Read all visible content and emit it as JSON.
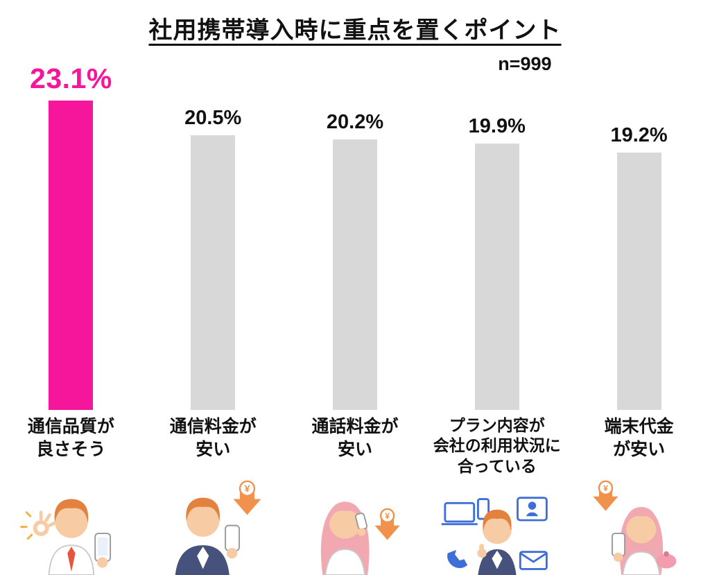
{
  "chart_data": {
    "type": "bar",
    "title": "社用携帯導入時に重点を置くポイント",
    "sample_label": "n=999",
    "unit": "%",
    "ylim": [
      0,
      25
    ],
    "grid": false,
    "legend": false,
    "categories": [
      "通信品質が良さそう",
      "通信料金が安い",
      "通話料金が安い",
      "プラン内容が会社の利用状況に合っている",
      "端末代金が安い"
    ],
    "values": [
      23.1,
      20.5,
      20.2,
      19.9,
      19.2
    ],
    "bars": [
      {
        "value": 23.1,
        "value_label": "23.1%",
        "category": "通信品質が\n良さそう",
        "highlighted": true,
        "illustration": "man-ok-sign-with-phone"
      },
      {
        "value": 20.5,
        "value_label": "20.5%",
        "category": "通信料金が\n安い",
        "highlighted": false,
        "illustration": "man-phone-yen-down-arrow"
      },
      {
        "value": 20.2,
        "value_label": "20.2%",
        "category": "通話料金が\n安い",
        "highlighted": false,
        "illustration": "woman-calling-yen-down-arrow"
      },
      {
        "value": 19.9,
        "value_label": "19.9%",
        "category": "プラン内容が\n会社の利用状況に\n合っている",
        "highlighted": false,
        "illustration": "man-with-devices"
      },
      {
        "value": 19.2,
        "value_label": "19.2%",
        "category": "端末代金\nが安い",
        "highlighted": false,
        "illustration": "woman-phone-purse-yen-down-arrow"
      }
    ],
    "colors": {
      "highlight": "#F5169B",
      "default": "#D8D8D8",
      "value_label_highlight": "#F5169B",
      "value_label_default": "#111111",
      "yen_arrow": "#F0924C",
      "device_blue": "#3E6FD9"
    },
    "yen_symbol": "¥"
  }
}
